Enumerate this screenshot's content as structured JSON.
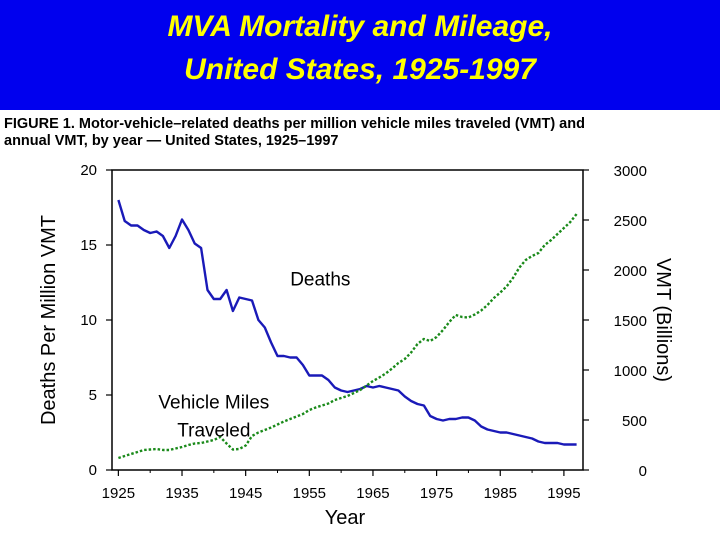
{
  "slide": {
    "title_line1": "MVA Mortality and Mileage,",
    "title_line2": "United States, 1925-1997",
    "banner_color": "#0000ee",
    "title_color": "#ffff00"
  },
  "figure": {
    "caption_line1": "FIGURE 1. Motor-vehicle–related deaths per million vehicle miles traveled (VMT) and",
    "caption_line2": "annual VMT, by year — United States, 1925–1997"
  },
  "chart_data": {
    "type": "line",
    "title": "",
    "xlabel": "Year",
    "ylabel_left": "Deaths Per Million VMT",
    "ylabel_right": "VMT (Billions)",
    "xlim": [
      1924,
      1998
    ],
    "ylim_left": [
      0,
      20
    ],
    "ylim_right": [
      0,
      3000
    ],
    "x_ticks": [
      "1925",
      "1935",
      "1945",
      "1955",
      "1965",
      "1975",
      "1985",
      "1995"
    ],
    "y_left_ticks": [
      "0",
      "5",
      "10",
      "15",
      "20"
    ],
    "y_right_ticks": [
      "0",
      "500",
      "1000",
      "1500",
      "2000",
      "2500",
      "3000"
    ],
    "grid": false,
    "series": [
      {
        "name": "Deaths",
        "axis": "left",
        "color": "#1a1ab8",
        "style": "solid",
        "label_year": 1952,
        "label_value": 12.3,
        "x": [
          1925,
          1926,
          1927,
          1928,
          1929,
          1930,
          1931,
          1932,
          1933,
          1934,
          1935,
          1936,
          1937,
          1938,
          1939,
          1940,
          1941,
          1942,
          1943,
          1944,
          1945,
          1946,
          1947,
          1948,
          1949,
          1950,
          1951,
          1952,
          1953,
          1954,
          1955,
          1956,
          1957,
          1958,
          1959,
          1960,
          1961,
          1962,
          1963,
          1964,
          1965,
          1966,
          1967,
          1968,
          1969,
          1970,
          1971,
          1972,
          1973,
          1974,
          1975,
          1976,
          1977,
          1978,
          1979,
          1980,
          1981,
          1982,
          1983,
          1984,
          1985,
          1986,
          1987,
          1988,
          1989,
          1990,
          1991,
          1992,
          1993,
          1994,
          1995,
          1996,
          1997
        ],
        "values": [
          18.0,
          16.6,
          16.3,
          16.3,
          16.0,
          15.8,
          15.9,
          15.6,
          14.8,
          15.6,
          16.7,
          16.0,
          15.1,
          14.8,
          12.0,
          11.4,
          11.4,
          12.0,
          10.6,
          11.5,
          11.4,
          11.3,
          10.0,
          9.5,
          8.5,
          7.6,
          7.6,
          7.5,
          7.5,
          7.0,
          6.3,
          6.3,
          6.3,
          6.0,
          5.5,
          5.3,
          5.2,
          5.3,
          5.4,
          5.6,
          5.5,
          5.6,
          5.5,
          5.4,
          5.3,
          4.9,
          4.6,
          4.4,
          4.3,
          3.6,
          3.4,
          3.3,
          3.4,
          3.4,
          3.5,
          3.5,
          3.3,
          2.9,
          2.7,
          2.6,
          2.5,
          2.5,
          2.4,
          2.3,
          2.2,
          2.1,
          1.9,
          1.8,
          1.8,
          1.8,
          1.7,
          1.7,
          1.7
        ]
      },
      {
        "name": "Vehicle Miles Traveled",
        "axis": "right",
        "color": "#1a8a1a",
        "style": "dotted",
        "label_year": 1940,
        "label_value": 4.1,
        "x": [
          1925,
          1926,
          1927,
          1928,
          1929,
          1930,
          1931,
          1932,
          1933,
          1934,
          1935,
          1936,
          1937,
          1938,
          1939,
          1940,
          1941,
          1942,
          1943,
          1944,
          1945,
          1946,
          1947,
          1948,
          1949,
          1950,
          1951,
          1952,
          1953,
          1954,
          1955,
          1956,
          1957,
          1958,
          1959,
          1960,
          1961,
          1962,
          1963,
          1964,
          1965,
          1966,
          1967,
          1968,
          1969,
          1970,
          1971,
          1972,
          1973,
          1974,
          1975,
          1976,
          1977,
          1978,
          1979,
          1980,
          1981,
          1982,
          1983,
          1984,
          1985,
          1986,
          1987,
          1988,
          1989,
          1990,
          1991,
          1992,
          1993,
          1994,
          1995,
          1996,
          1997
        ],
        "values": [
          120,
          140,
          160,
          180,
          200,
          205,
          210,
          200,
          200,
          215,
          230,
          250,
          265,
          270,
          285,
          300,
          330,
          265,
          205,
          210,
          245,
          340,
          375,
          400,
          425,
          455,
          485,
          510,
          535,
          560,
          600,
          625,
          645,
          665,
          700,
          720,
          740,
          770,
          800,
          845,
          890,
          925,
          965,
          1015,
          1070,
          1110,
          1175,
          1260,
          1310,
          1290,
          1330,
          1400,
          1480,
          1550,
          1530,
          1525,
          1555,
          1595,
          1650,
          1720,
          1775,
          1835,
          1920,
          2025,
          2100,
          2140,
          2170,
          2250,
          2300,
          2360,
          2420,
          2480,
          2560
        ]
      }
    ]
  }
}
